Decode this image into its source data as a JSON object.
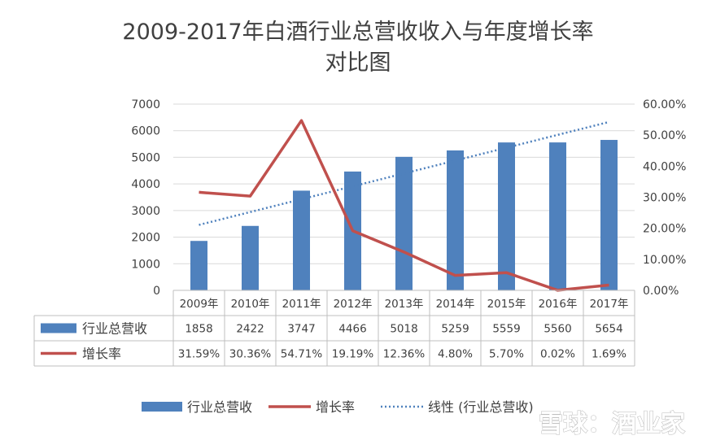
{
  "chart_data": {
    "type": "bar",
    "title_line1": "2009-2017年白酒行业总营收收入与年度增长率",
    "title_line2": "对比图",
    "categories": [
      "2009年",
      "2010年",
      "2011年",
      "2012年",
      "2013年",
      "2014年",
      "2015年",
      "2016年",
      "2017年"
    ],
    "series": [
      {
        "name": "行业总营收",
        "type": "bar",
        "axis": "left",
        "color": "#4f81bd",
        "values": [
          1858,
          2422,
          3747,
          4466,
          5018,
          5259,
          5559,
          5560,
          5654
        ]
      },
      {
        "name": "增长率",
        "type": "line",
        "axis": "right",
        "color": "#c0504d",
        "values": [
          31.59,
          30.36,
          54.71,
          19.19,
          12.36,
          4.8,
          5.7,
          0.02,
          1.69
        ]
      }
    ],
    "table_rows": [
      {
        "label": "行业总营收",
        "cells": [
          "1858",
          "2422",
          "3747",
          "4466",
          "5018",
          "5259",
          "5559",
          "5560",
          "5654"
        ]
      },
      {
        "label": "增长率",
        "cells": [
          "31.59%",
          "30.36%",
          "54.71%",
          "19.19%",
          "12.36%",
          "4.80%",
          "5.70%",
          "0.02%",
          "1.69%"
        ]
      }
    ],
    "trendline": {
      "name": "线性 (行业总营收)",
      "of_series": "行业总营收",
      "style": "dotted",
      "color": "#4f81bd"
    },
    "y_left": {
      "min": 0,
      "max": 7000,
      "ticks": [
        "0",
        "1000",
        "2000",
        "3000",
        "4000",
        "5000",
        "6000",
        "7000"
      ]
    },
    "y_right": {
      "min": 0,
      "max": 60,
      "ticks": [
        "0.00%",
        "10.00%",
        "20.00%",
        "30.00%",
        "40.00%",
        "50.00%",
        "60.00%"
      ]
    },
    "grid": true,
    "legend_position": "bottom",
    "legend": [
      "行业总营收",
      "增长率",
      "线性 (行业总营收)"
    ]
  },
  "watermark": "雪球：酒业家"
}
